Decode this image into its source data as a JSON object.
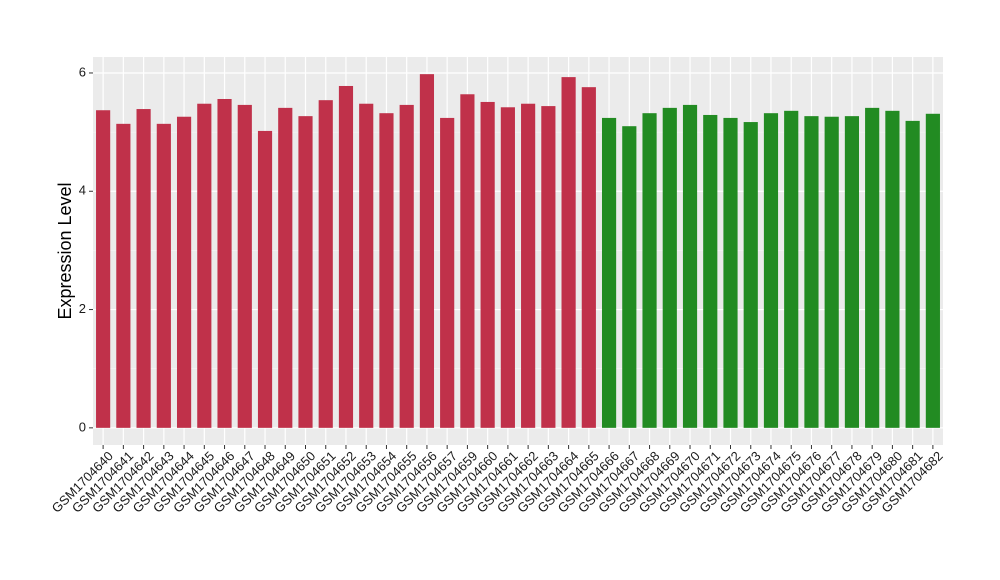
{
  "chart_data": {
    "type": "bar",
    "y_label": "Expression Level",
    "categories": [
      "GSM1704640",
      "GSM1704641",
      "GSM1704642",
      "GSM1704643",
      "GSM1704644",
      "GSM1704645",
      "GSM1704646",
      "GSM1704647",
      "GSM1704648",
      "GSM1704649",
      "GSM1704650",
      "GSM1704651",
      "GSM1704652",
      "GSM1704653",
      "GSM1704654",
      "GSM1704655",
      "GSM1704656",
      "GSM1704657",
      "GSM1704659",
      "GSM1704660",
      "GSM1704661",
      "GSM1704662",
      "GSM1704663",
      "GSM1704664",
      "GSM1704665",
      "GSM1704666",
      "GSM1704667",
      "GSM1704668",
      "GSM1704669",
      "GSM1704670",
      "GSM1704671",
      "GSM1704672",
      "GSM1704673",
      "GSM1704674",
      "GSM1704675",
      "GSM1704676",
      "GSM1704677",
      "GSM1704678",
      "GSM1704679",
      "GSM1704680",
      "GSM1704681",
      "GSM1704682"
    ],
    "values": [
      5.37,
      5.14,
      5.39,
      5.14,
      5.26,
      5.48,
      5.56,
      5.46,
      5.02,
      5.41,
      5.27,
      5.54,
      5.78,
      5.48,
      5.32,
      5.46,
      5.98,
      5.24,
      5.64,
      5.51,
      5.42,
      5.48,
      5.44,
      5.93,
      5.76,
      5.24,
      5.1,
      5.32,
      5.41,
      5.46,
      5.29,
      5.24,
      5.17,
      5.32,
      5.36,
      5.27,
      5.26,
      5.27,
      5.41,
      5.36,
      5.19,
      5.31
    ],
    "colors": [
      "#c0314a",
      "#c0314a",
      "#c0314a",
      "#c0314a",
      "#c0314a",
      "#c0314a",
      "#c0314a",
      "#c0314a",
      "#c0314a",
      "#c0314a",
      "#c0314a",
      "#c0314a",
      "#c0314a",
      "#c0314a",
      "#c0314a",
      "#c0314a",
      "#c0314a",
      "#c0314a",
      "#c0314a",
      "#c0314a",
      "#c0314a",
      "#c0314a",
      "#c0314a",
      "#c0314a",
      "#c0314a",
      "#228b22",
      "#228b22",
      "#228b22",
      "#228b22",
      "#228b22",
      "#228b22",
      "#228b22",
      "#228b22",
      "#228b22",
      "#228b22",
      "#228b22",
      "#228b22",
      "#228b22",
      "#228b22",
      "#228b22",
      "#228b22",
      "#228b22"
    ],
    "ylim": [
      -0.29,
      6.27
    ],
    "yticks": [
      0,
      2,
      4,
      6
    ],
    "grid": true
  }
}
